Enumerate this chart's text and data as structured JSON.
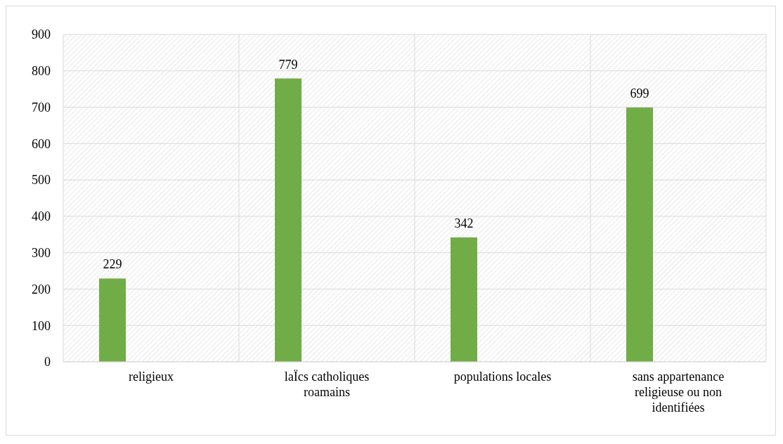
{
  "chart_data": {
    "type": "bar",
    "categories": [
      "religieux",
      "laÏcs catholiques roamains",
      "populations locales",
      "sans appartenance religieuse ou non identifiées"
    ],
    "values": [
      229,
      779,
      342,
      699
    ],
    "color": "#70ad47",
    "ylim": [
      0,
      900
    ],
    "yticks": [
      0,
      100,
      200,
      300,
      400,
      500,
      600,
      700,
      800,
      900
    ],
    "grid": true,
    "data_labels": true
  }
}
